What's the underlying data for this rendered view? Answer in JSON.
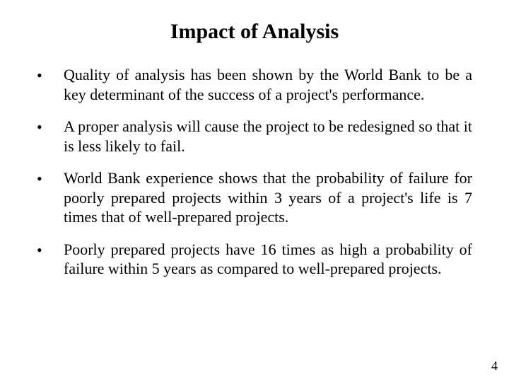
{
  "title": "Impact of Analysis",
  "bullets": [
    "Quality of analysis has been shown by the World Bank to be a key determinant of the success of a project's performance.",
    "A proper analysis will cause the project to be redesigned so that it is less likely to fail.",
    "World Bank experience shows that the probability of failure for poorly prepared projects within 3 years of a project's life is 7 times that of well-prepared projects.",
    "Poorly prepared projects have 16 times as high a probability of failure within 5 years as compared to well-prepared projects."
  ],
  "pageNumber": "4",
  "bulletChar": "•"
}
